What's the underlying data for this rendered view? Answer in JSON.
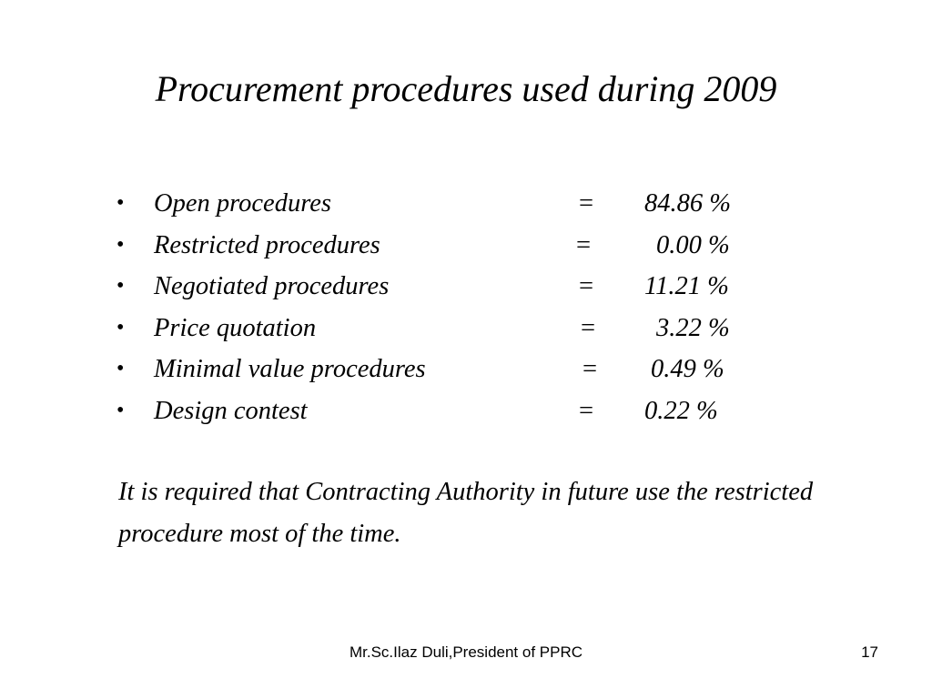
{
  "slide": {
    "title": "Procurement procedures used during  2009",
    "bullet_symbol": "•",
    "items": [
      {
        "label": "Open procedures",
        "equals": "=",
        "value": "84.86 %"
      },
      {
        "label": "Restricted procedures",
        "equals": "=",
        "value": "0.00 %"
      },
      {
        "label": "Negotiated procedures",
        "equals": "=",
        "value": "11.21 %"
      },
      {
        "label": "Price quotation",
        "equals": "=",
        "value": "3.22 %"
      },
      {
        "label": "Minimal value procedures",
        "equals": "=",
        "value": "0.49 %"
      },
      {
        "label": "Design contest",
        "equals": "=",
        "value": "0.22 %"
      }
    ],
    "note": "It is required that Contracting Authority in future use the restricted procedure most of the time.",
    "footer": "Mr.Sc.Ilaz Duli,President of PPRC",
    "page_number": "17"
  }
}
